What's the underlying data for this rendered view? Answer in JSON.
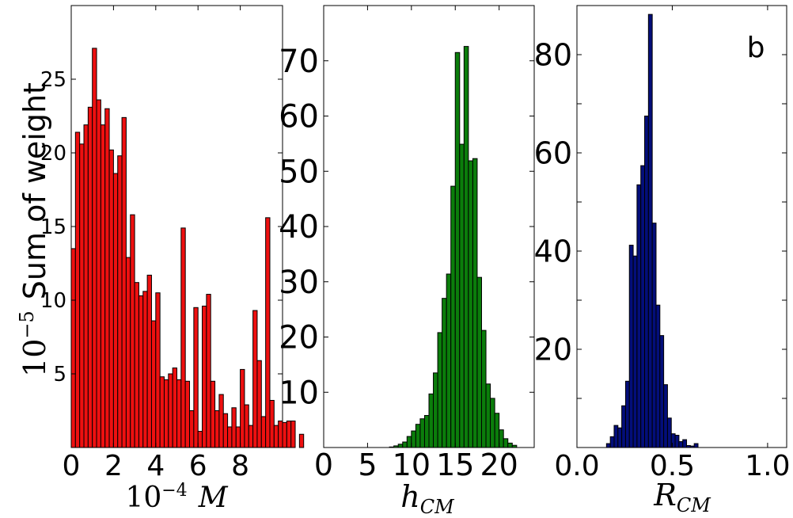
{
  "chart_data": [
    {
      "type": "bar",
      "id": "M",
      "color": "#ee1010",
      "xlabel_prefix": "10",
      "xlabel_exp": "−4",
      "xlabel_var": "M",
      "ylabel_prefix": "10",
      "ylabel_exp": "−5",
      "ylabel_text": "Sum of weight",
      "xlim": [
        0,
        10
      ],
      "ylim": [
        0,
        30
      ],
      "xticks": [
        0,
        2,
        4,
        6,
        8
      ],
      "yticks": [
        5,
        10,
        15,
        20,
        25
      ],
      "bin_start": 0,
      "bin_width": 0.2,
      "values": [
        13.5,
        21.4,
        20.6,
        21.9,
        23.1,
        27.1,
        23.6,
        21.9,
        23.0,
        20.2,
        18.6,
        19.8,
        22.4,
        12.9,
        15.8,
        11.2,
        10.3,
        10.6,
        11.7,
        8.6,
        10.5,
        4.8,
        4.6,
        5.0,
        5.4,
        4.6,
        14.9,
        4.5,
        2.5,
        9.5,
        1.1,
        9.6,
        10.4,
        4.5,
        2.5,
        3.6,
        2.3,
        1.4,
        2.7,
        1.4,
        5.3,
        2.9,
        1.5,
        9.3,
        5.9,
        2.1,
        15.6,
        3.2,
        1.5,
        1.8,
        1.7,
        1.8,
        1.8,
        0,
        0.9
      ]
    },
    {
      "type": "bar",
      "id": "hCM",
      "color": "#0b7d0b",
      "xlabel_var": "h",
      "xlabel_sub": "CM",
      "xlim": [
        0,
        24
      ],
      "ylim": [
        0,
        80
      ],
      "xticks": [
        0,
        5,
        10,
        15,
        20
      ],
      "yticks": [
        10,
        20,
        30,
        40,
        50,
        60,
        70
      ],
      "bin_start": 7.5,
      "bin_width": 0.5,
      "values": [
        0.1,
        0.3,
        0.6,
        1.0,
        2.0,
        3.0,
        4.2,
        5.2,
        5.8,
        9.7,
        13.5,
        20.8,
        27.0,
        31.4,
        47.3,
        71.5,
        54.9,
        72.6,
        51.9,
        52.3,
        30.8,
        21.2,
        11.5,
        8.9,
        6.2,
        3.2,
        1.6,
        0.8,
        0.4
      ]
    },
    {
      "type": "bar",
      "id": "RCM",
      "color": "#030e7a",
      "xlabel_var": "R",
      "xlabel_sub": "CM",
      "annotation": "b",
      "xlim": [
        0,
        1.1
      ],
      "ylim": [
        0,
        90
      ],
      "xticks": [
        0.0,
        0.5,
        1.0
      ],
      "ytick_labels_shown": [
        20,
        40,
        60,
        80
      ],
      "bin_start": 0.155,
      "bin_width": 0.02,
      "values": [
        0.8,
        2.2,
        4.5,
        4.0,
        8.5,
        13.5,
        41.2,
        39.0,
        53.5,
        57.4,
        67.5,
        88.2,
        45.7,
        29.0,
        22.8,
        12.8,
        6.0,
        2.8,
        2.5,
        1.2,
        1.6,
        0.4,
        0.3,
        0.8
      ]
    }
  ]
}
